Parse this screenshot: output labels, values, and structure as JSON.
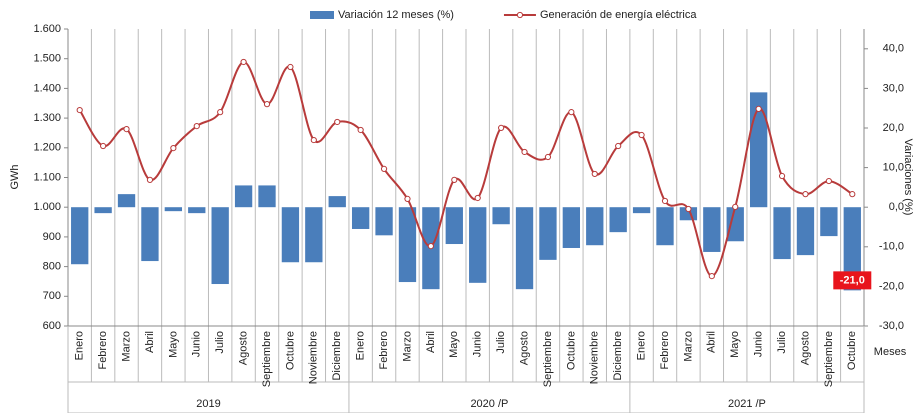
{
  "chart_data": {
    "type": "bar-line",
    "legend_position": "top",
    "x_label": "Meses",
    "y_label": "GWh",
    "y2_label": "Variaciones (%)",
    "categories": [
      "Enero",
      "Febrero",
      "Marzo",
      "Abril",
      "Mayo",
      "Junio",
      "Julio",
      "Agosto",
      "Septiembre",
      "Octubre",
      "Noviembre",
      "Diciembre",
      "Enero",
      "Febrero",
      "Marzo",
      "Abril",
      "Mayo",
      "Junio",
      "Julio",
      "Agosto",
      "Septiembre",
      "Octubre",
      "Noviembre",
      "Diciembre",
      "Enero",
      "Febrero",
      "Marzo",
      "Abril",
      "Mayo",
      "Junio",
      "Julio",
      "Agosto",
      "Septiembre",
      "Octubre"
    ],
    "groups": [
      "2019",
      "2020 /P",
      "2021 /P"
    ],
    "series": [
      {
        "name": "Variación 12 meses (%)",
        "type": "bar",
        "axis": "y2",
        "color": "#4a7ebb",
        "values": [
          -14.4,
          -1.5,
          3.3,
          -13.6,
          -1.0,
          -1.5,
          -19.4,
          5.5,
          5.5,
          -13.9,
          -13.9,
          2.8,
          -5.5,
          -7.1,
          -18.9,
          -20.7,
          -9.3,
          -19.1,
          -4.3,
          -20.7,
          -13.3,
          -10.3,
          -9.6,
          -6.3,
          -1.5,
          -9.6,
          -3.3,
          -11.3,
          -8.6,
          29.0,
          -13.1,
          -12.1,
          -7.3,
          -21.0
        ],
        "value_labels": [
          null,
          null,
          null,
          null,
          null,
          null,
          null,
          null,
          null,
          null,
          null,
          null,
          null,
          null,
          null,
          null,
          null,
          null,
          null,
          null,
          null,
          null,
          null,
          null,
          null,
          null,
          null,
          null,
          null,
          null,
          null,
          null,
          null,
          "-21,0"
        ]
      },
      {
        "name": "Generación de energía eléctrica",
        "type": "line",
        "axis": "y",
        "color": "#b83b3b",
        "values": [
          1327,
          1206,
          1263,
          1092,
          1199,
          1273,
          1320,
          1489,
          1347,
          1472,
          1226,
          1287,
          1260,
          1129,
          1028,
          869,
          1092,
          1031,
          1267,
          1186,
          1169,
          1320,
          1112,
          1206,
          1243,
          1021,
          994,
          768,
          1001,
          1331,
          1105,
          1044,
          1088,
          1044
        ]
      }
    ],
    "ylim": [
      600,
      1600
    ],
    "yticks": [
      {
        "value": 1600,
        "label": "1.600"
      },
      {
        "value": 1500,
        "label": "1.500"
      },
      {
        "value": 1400,
        "label": "1.400"
      },
      {
        "value": 1300,
        "label": "1.300"
      },
      {
        "value": 1200,
        "label": "1.200"
      },
      {
        "value": 1100,
        "label": "1.100"
      },
      {
        "value": 1000,
        "label": "1.000"
      },
      900,
      800,
      700,
      600
    ],
    "y2lim": [
      -30,
      45
    ],
    "y2ticks": [
      {
        "value": 40,
        "label": "40,0"
      },
      {
        "value": 30,
        "label": "30,0"
      },
      {
        "value": 20,
        "label": "20,0"
      },
      {
        "value": 10,
        "label": "10,0"
      },
      {
        "value": 0,
        "label": "0,0"
      },
      {
        "value": -10,
        "label": "-10,0"
      },
      {
        "value": -20,
        "label": "-20,0"
      },
      {
        "value": -30,
        "label": "-30,0"
      }
    ]
  }
}
